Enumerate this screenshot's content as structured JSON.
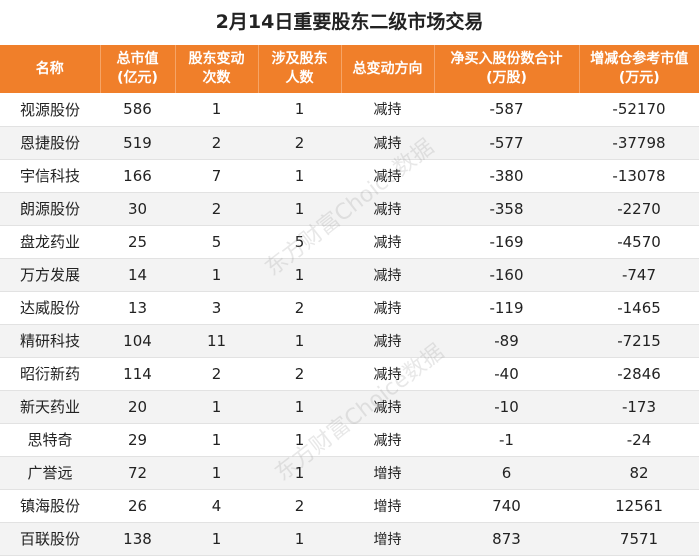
{
  "title": "2月14日重要股东二级市场交易",
  "watermark": "东方财富Choice数据",
  "headers": [
    {
      "l1": "名称",
      "l2": ""
    },
    {
      "l1": "总市值",
      "l2": "(亿元)"
    },
    {
      "l1": "股东变动",
      "l2": "次数"
    },
    {
      "l1": "涉及股东",
      "l2": "人数"
    },
    {
      "l1": "总变动方向",
      "l2": ""
    },
    {
      "l1": "净买入股份数合计",
      "l2": "(万股)"
    },
    {
      "l1": "增减仓参考市值",
      "l2": "(万元)"
    }
  ],
  "rows": [
    {
      "name": "视源股份",
      "mktcap": "586",
      "changes": "1",
      "holders": "1",
      "direction": "减持",
      "net_shares": "-587",
      "ref_value": "-52170"
    },
    {
      "name": "恩捷股份",
      "mktcap": "519",
      "changes": "2",
      "holders": "2",
      "direction": "减持",
      "net_shares": "-577",
      "ref_value": "-37798"
    },
    {
      "name": "宇信科技",
      "mktcap": "166",
      "changes": "7",
      "holders": "1",
      "direction": "减持",
      "net_shares": "-380",
      "ref_value": "-13078"
    },
    {
      "name": "朗源股份",
      "mktcap": "30",
      "changes": "2",
      "holders": "1",
      "direction": "减持",
      "net_shares": "-358",
      "ref_value": "-2270"
    },
    {
      "name": "盘龙药业",
      "mktcap": "25",
      "changes": "5",
      "holders": "5",
      "direction": "减持",
      "net_shares": "-169",
      "ref_value": "-4570"
    },
    {
      "name": "万方发展",
      "mktcap": "14",
      "changes": "1",
      "holders": "1",
      "direction": "减持",
      "net_shares": "-160",
      "ref_value": "-747"
    },
    {
      "name": "达威股份",
      "mktcap": "13",
      "changes": "3",
      "holders": "2",
      "direction": "减持",
      "net_shares": "-119",
      "ref_value": "-1465"
    },
    {
      "name": "精研科技",
      "mktcap": "104",
      "changes": "11",
      "holders": "1",
      "direction": "减持",
      "net_shares": "-89",
      "ref_value": "-7215"
    },
    {
      "name": "昭衍新药",
      "mktcap": "114",
      "changes": "2",
      "holders": "2",
      "direction": "减持",
      "net_shares": "-40",
      "ref_value": "-2846"
    },
    {
      "name": "新天药业",
      "mktcap": "20",
      "changes": "1",
      "holders": "1",
      "direction": "减持",
      "net_shares": "-10",
      "ref_value": "-173"
    },
    {
      "name": "思特奇",
      "mktcap": "29",
      "changes": "1",
      "holders": "1",
      "direction": "减持",
      "net_shares": "-1",
      "ref_value": "-24"
    },
    {
      "name": "广誉远",
      "mktcap": "72",
      "changes": "1",
      "holders": "1",
      "direction": "增持",
      "net_shares": "6",
      "ref_value": "82"
    },
    {
      "name": "镇海股份",
      "mktcap": "26",
      "changes": "4",
      "holders": "2",
      "direction": "增持",
      "net_shares": "740",
      "ref_value": "12561"
    },
    {
      "name": "百联股份",
      "mktcap": "138",
      "changes": "1",
      "holders": "1",
      "direction": "增持",
      "net_shares": "873",
      "ref_value": "7571"
    }
  ]
}
